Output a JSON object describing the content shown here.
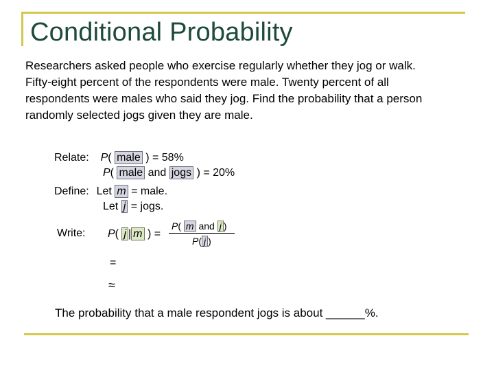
{
  "title": "Conditional Probability",
  "problem_text": "Researchers asked people who exercise regularly whether they jog or walk. Fifty-eight percent of the respondents were male. Twenty percent of all respondents were males who said they jog. Find the probability that a person randomly selected jogs given they are male.",
  "relate": {
    "label": "Relate:",
    "p": "P",
    "open": "(",
    "male": "male",
    "close_eq1": ") = 58%",
    "and": "and",
    "jogs": "jogs",
    "close_eq2": ") = 20%"
  },
  "define": {
    "label": "Define:",
    "let": "Let",
    "var_m": "m",
    "eq_male": "= male.",
    "var_j": "j",
    "eq_jogs": "= jogs."
  },
  "write": {
    "label": "Write:",
    "p": "P",
    "open": "(",
    "j": "j",
    "bar": "|",
    "m": "m",
    "close_eq": ") =",
    "num_and": "and",
    "num_close": ")",
    "den_close": ")",
    "equals": "=",
    "approx": "≈"
  },
  "answer_text": "The probability that a male respondent jogs is about ______%.",
  "colors": {
    "title": "#1d4a3c",
    "frame": "#d4c84a",
    "box_fill": "#d6d6e2",
    "box_fill_green": "#dce8c6"
  }
}
